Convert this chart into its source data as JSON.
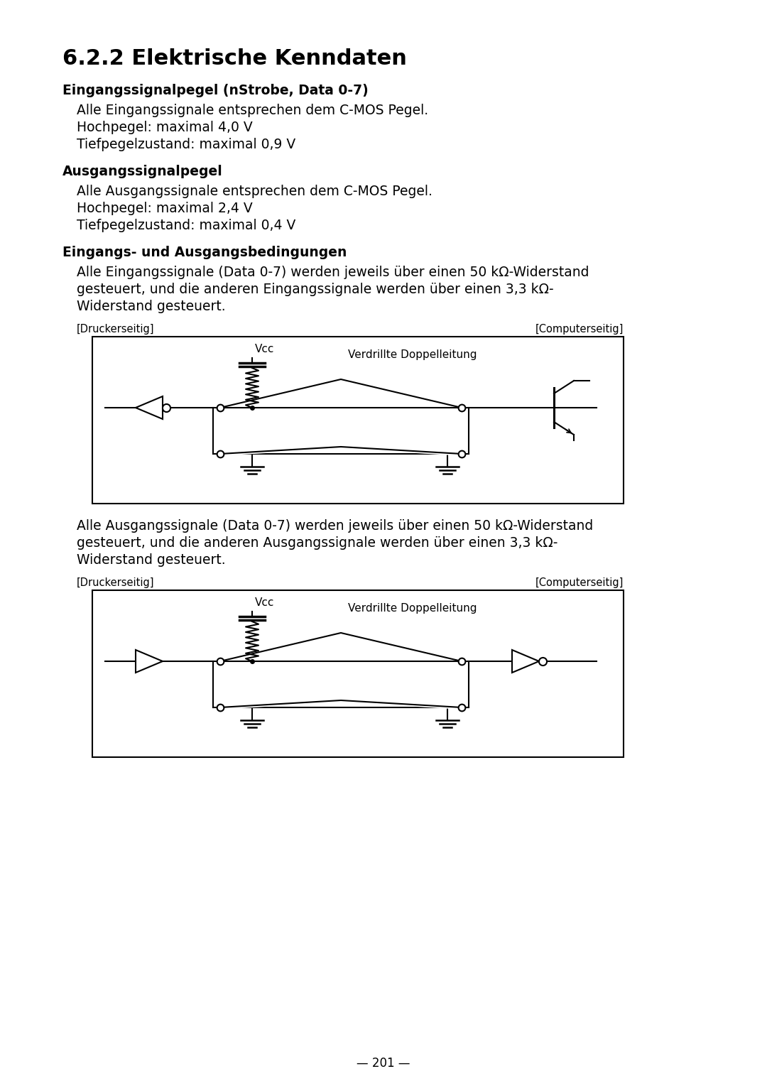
{
  "title": "6.2.2 Elektrische Kenndaten",
  "section1_header": "Eingangssignalpegel (nStrobe, Data 0-7)",
  "section1_lines": [
    "Alle Eingangssignale entsprechen dem C-MOS Pegel.",
    "Hochpegel: maximal 4,0 V",
    "Tiefpegelzustand: maximal 0,9 V"
  ],
  "section2_header": "Ausgangssignalpegel",
  "section2_lines": [
    "Alle Ausgangssignale entsprechen dem C-MOS Pegel.",
    "Hochpegel: maximal 2,4 V",
    "Tiefpegelzustand: maximal 0,4 V"
  ],
  "section3_header": "Eingangs- und Ausgangsbedingungen",
  "section3_lines": [
    "Alle Eingangssignale (Data 0-7) werden jeweils über einen 50 kΩ-Widerstand",
    "gesteuert, und die anderen Eingangssignale werden über einen 3,3 kΩ-",
    "Widerstand gesteuert."
  ],
  "diagram1_label_left": "[Druckerseitig]",
  "diagram1_label_right": "[Computerseitig]",
  "diagram_vcc_label": "Vcc",
  "diagram_line_label": "Verdrillte Doppelleitung",
  "section4_lines": [
    "Alle Ausgangssignale (Data 0-7) werden jeweils über einen 50 kΩ-Widerstand",
    "gesteuert, und die anderen Ausgangssignale werden über einen 3,3 kΩ-",
    "Widerstand gesteuert."
  ],
  "diagram2_label_left": "[Druckerseitig]",
  "diagram2_label_right": "[Computerseitig]",
  "page_number": "— 201 —",
  "bg_color": "#ffffff",
  "text_color": "#000000"
}
